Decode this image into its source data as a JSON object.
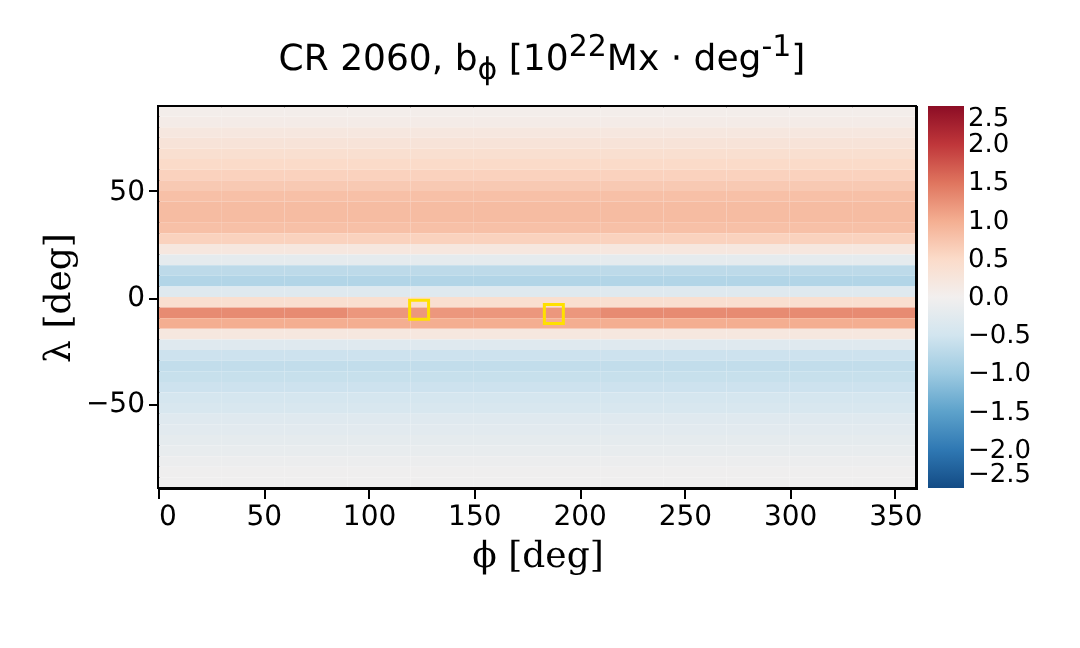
{
  "chart_data": {
    "type": "heatmap",
    "title": "CR 2060, b$_{ϕ}$ [10$^{22}$Mx · deg$^{-1}$]",
    "xlabel": "ϕ [deg]",
    "ylabel": "λ [deg]",
    "x": [
      15,
      45,
      75,
      105,
      135,
      165,
      195,
      225,
      255,
      285,
      315,
      345
    ],
    "y": [
      87.5,
      82.5,
      77.5,
      72.5,
      67.5,
      62.5,
      57.5,
      52.5,
      47.5,
      42.5,
      37.5,
      32.5,
      27.5,
      22.5,
      17.5,
      12.5,
      7.5,
      2.5,
      -2.5,
      -7.5,
      -12.5,
      -17.5,
      -22.5,
      -27.5,
      -32.5,
      -37.5,
      -42.5,
      -47.5,
      -52.5,
      -57.5,
      -62.5,
      -67.5,
      -72.5,
      -77.5,
      -82.5,
      -87.5
    ],
    "cells": [
      [
        0.05,
        0.05,
        0.05,
        0.05,
        0.05,
        0.05,
        0.05,
        0.05,
        0.05,
        0.05,
        0.05,
        0.05
      ],
      [
        0.1,
        0.1,
        0.1,
        0.1,
        0.1,
        0.1,
        0.1,
        0.1,
        0.1,
        0.1,
        0.1,
        0.1
      ],
      [
        0.2,
        0.2,
        0.2,
        0.2,
        0.2,
        0.2,
        0.2,
        0.2,
        0.2,
        0.2,
        0.2,
        0.2
      ],
      [
        0.3,
        0.3,
        0.3,
        0.3,
        0.3,
        0.3,
        0.3,
        0.3,
        0.3,
        0.3,
        0.3,
        0.3
      ],
      [
        0.4,
        0.4,
        0.4,
        0.4,
        0.4,
        0.4,
        0.4,
        0.4,
        0.4,
        0.4,
        0.4,
        0.4
      ],
      [
        0.5,
        0.5,
        0.5,
        0.5,
        0.5,
        0.5,
        0.5,
        0.5,
        0.5,
        0.5,
        0.5,
        0.5
      ],
      [
        0.6,
        0.6,
        0.6,
        0.6,
        0.6,
        0.6,
        0.6,
        0.6,
        0.6,
        0.6,
        0.6,
        0.6
      ],
      [
        0.7,
        0.7,
        0.7,
        0.7,
        0.7,
        0.7,
        0.7,
        0.7,
        0.7,
        0.7,
        0.7,
        0.7
      ],
      [
        0.8,
        0.8,
        0.8,
        0.8,
        0.8,
        0.8,
        0.8,
        0.8,
        0.8,
        0.8,
        0.8,
        0.8
      ],
      [
        0.85,
        0.85,
        0.85,
        0.85,
        0.85,
        0.85,
        0.85,
        0.85,
        0.85,
        0.85,
        0.85,
        0.85
      ],
      [
        0.85,
        0.85,
        0.85,
        0.85,
        0.85,
        0.85,
        0.85,
        0.85,
        0.85,
        0.85,
        0.85,
        0.85
      ],
      [
        0.8,
        0.8,
        0.8,
        0.8,
        0.8,
        0.8,
        0.8,
        0.8,
        0.8,
        0.8,
        0.8,
        0.8
      ],
      [
        0.6,
        0.6,
        0.6,
        0.6,
        0.6,
        0.6,
        0.6,
        0.6,
        0.6,
        0.6,
        0.6,
        0.6
      ],
      [
        0.2,
        0.2,
        0.2,
        0.2,
        0.2,
        0.2,
        0.2,
        0.2,
        0.2,
        0.2,
        0.2,
        0.2
      ],
      [
        -0.2,
        -0.2,
        -0.2,
        -0.2,
        -0.2,
        -0.2,
        -0.2,
        -0.2,
        -0.2,
        -0.2,
        -0.2,
        -0.2
      ],
      [
        -0.7,
        -0.7,
        -0.7,
        -0.7,
        -0.7,
        -0.7,
        -0.7,
        -0.7,
        -0.7,
        -0.7,
        -0.7,
        -0.7
      ],
      [
        -0.8,
        -0.8,
        -0.8,
        -0.8,
        -0.8,
        -0.8,
        -0.8,
        -0.8,
        -0.8,
        -0.8,
        -0.8,
        -0.8
      ],
      [
        -0.3,
        -0.3,
        -0.3,
        -0.3,
        -0.3,
        -0.3,
        -0.3,
        -0.3,
        -0.3,
        -0.3,
        -0.3,
        -0.3
      ],
      [
        0.4,
        0.4,
        0.4,
        0.4,
        0.4,
        0.4,
        0.4,
        0.4,
        0.4,
        0.4,
        0.4,
        0.4
      ],
      [
        1.3,
        1.3,
        1.3,
        1.2,
        1.2,
        1.2,
        1.2,
        1.3,
        1.3,
        1.3,
        1.3,
        1.3
      ],
      [
        1.0,
        1.0,
        1.0,
        1.0,
        1.0,
        1.0,
        1.0,
        1.0,
        1.0,
        1.0,
        1.0,
        1.0
      ],
      [
        0.2,
        0.2,
        0.2,
        0.2,
        0.2,
        0.2,
        0.2,
        0.2,
        0.2,
        0.2,
        0.2,
        0.2
      ],
      [
        -0.3,
        -0.3,
        -0.3,
        -0.3,
        -0.3,
        -0.3,
        -0.3,
        -0.3,
        -0.3,
        -0.3,
        -0.3,
        -0.3
      ],
      [
        -0.55,
        -0.55,
        -0.55,
        -0.55,
        -0.55,
        -0.55,
        -0.55,
        -0.55,
        -0.55,
        -0.55,
        -0.55,
        -0.55
      ],
      [
        -0.65,
        -0.65,
        -0.65,
        -0.65,
        -0.65,
        -0.65,
        -0.65,
        -0.65,
        -0.65,
        -0.65,
        -0.65,
        -0.65
      ],
      [
        -0.6,
        -0.6,
        -0.6,
        -0.6,
        -0.6,
        -0.6,
        -0.6,
        -0.6,
        -0.6,
        -0.6,
        -0.6,
        -0.6
      ],
      [
        -0.55,
        -0.55,
        -0.55,
        -0.55,
        -0.55,
        -0.55,
        -0.55,
        -0.55,
        -0.55,
        -0.55,
        -0.55,
        -0.55
      ],
      [
        -0.45,
        -0.45,
        -0.45,
        -0.45,
        -0.45,
        -0.45,
        -0.45,
        -0.45,
        -0.45,
        -0.45,
        -0.45,
        -0.45
      ],
      [
        -0.4,
        -0.4,
        -0.4,
        -0.4,
        -0.4,
        -0.4,
        -0.4,
        -0.4,
        -0.4,
        -0.4,
        -0.4,
        -0.4
      ],
      [
        -0.3,
        -0.3,
        -0.3,
        -0.3,
        -0.3,
        -0.3,
        -0.3,
        -0.3,
        -0.3,
        -0.3,
        -0.3,
        -0.3
      ],
      [
        -0.25,
        -0.25,
        -0.25,
        -0.25,
        -0.25,
        -0.25,
        -0.25,
        -0.25,
        -0.25,
        -0.25,
        -0.25,
        -0.25
      ],
      [
        -0.2,
        -0.2,
        -0.2,
        -0.2,
        -0.2,
        -0.2,
        -0.2,
        -0.2,
        -0.2,
        -0.2,
        -0.2,
        -0.2
      ],
      [
        -0.15,
        -0.15,
        -0.15,
        -0.15,
        -0.15,
        -0.15,
        -0.15,
        -0.15,
        -0.15,
        -0.15,
        -0.15,
        -0.15
      ],
      [
        -0.1,
        -0.1,
        -0.1,
        -0.1,
        -0.1,
        -0.1,
        -0.1,
        -0.1,
        -0.1,
        -0.1,
        -0.1,
        -0.1
      ],
      [
        -0.05,
        -0.05,
        -0.05,
        -0.05,
        -0.05,
        -0.05,
        -0.05,
        -0.05,
        -0.05,
        -0.05,
        -0.05,
        -0.05
      ],
      [
        -0.05,
        -0.05,
        -0.05,
        -0.05,
        -0.05,
        -0.05,
        -0.05,
        -0.05,
        -0.05,
        -0.05,
        -0.05,
        -0.05
      ]
    ],
    "series": [
      {
        "type": "scatter",
        "marker": "square",
        "color": "#ffe000",
        "x": [
          124,
          188
        ],
        "values": [
          -6,
          -8
        ]
      }
    ],
    "xlim": [
      0,
      360
    ],
    "ylim": [
      -90,
      90
    ],
    "xticks": [
      0,
      50,
      100,
      150,
      200,
      250,
      300,
      350
    ],
    "yticks": [
      {
        "value": -50,
        "label": "−50"
      },
      0,
      50
    ],
    "clim": [
      -2.5,
      2.5
    ],
    "cticks": [
      2.5,
      {
        "value": 2,
        "label": "2.0"
      },
      1.5,
      {
        "value": 1,
        "label": "1.0"
      },
      0.5,
      {
        "value": 0,
        "label": "0.0"
      },
      {
        "value": -0.5,
        "label": "−0.5"
      },
      {
        "value": -1,
        "label": "−1.0"
      },
      {
        "value": -1.5,
        "label": "−1.5"
      },
      {
        "value": -2,
        "label": "−2.0"
      },
      {
        "value": -2.5,
        "label": "−2.5"
      }
    ],
    "grid": false
  }
}
